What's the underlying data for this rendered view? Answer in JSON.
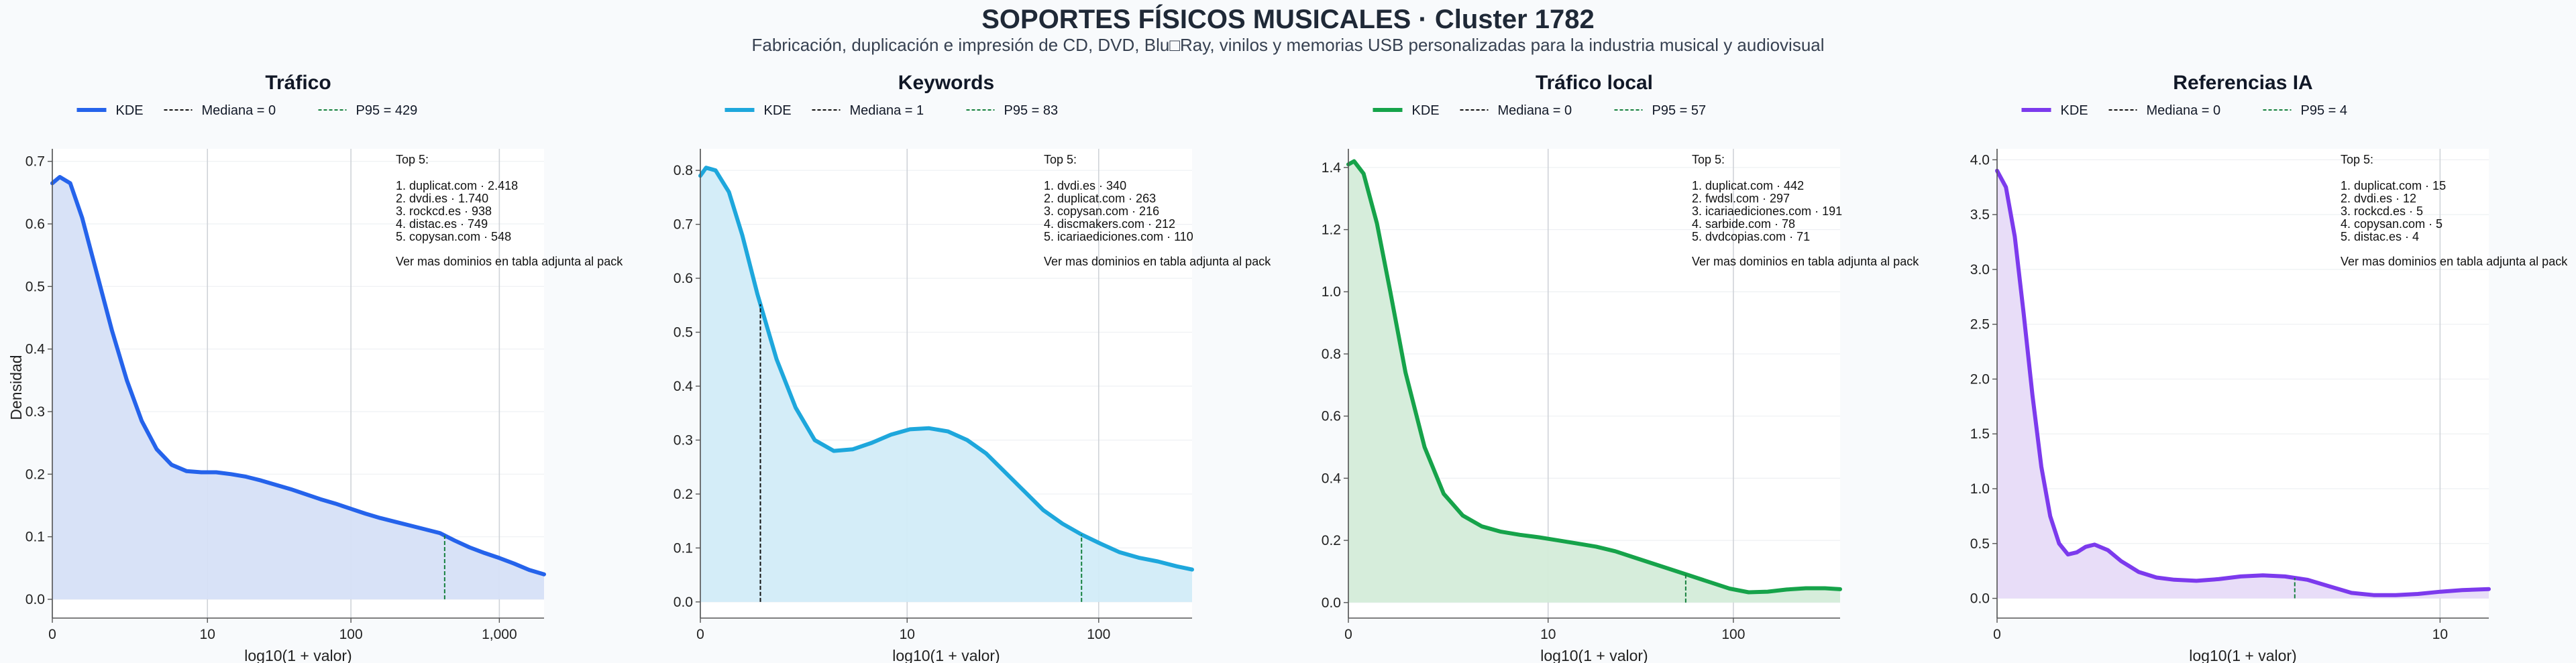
{
  "figure": {
    "title": "SOPORTES FÍSICOS MUSICALES · Cluster 1782",
    "subtitle": "Fabricación, duplicación e impresión de CD, DVD, Blu□Ray, vinilos y memorias USB personalizadas para la industria musical y audiovisual"
  },
  "chart_data": [
    {
      "type": "area",
      "title": "Tráfico",
      "color": "#2563eb",
      "fill": "#d6e0f7",
      "xlabel": "log10(1 + valor)",
      "ylabel": "Densidad",
      "xlim": [
        0,
        3.3
      ],
      "ylim": [
        -0.03,
        0.72
      ],
      "xticks": [
        {
          "v": 0,
          "label": "0"
        },
        {
          "v": 1.041,
          "label": "10"
        },
        {
          "v": 2.004,
          "label": "100"
        },
        {
          "v": 3.0,
          "label": "1,000"
        }
      ],
      "yticks": [
        0.0,
        0.1,
        0.2,
        0.3,
        0.4,
        0.5,
        0.6,
        0.7
      ],
      "legend": {
        "kde": "KDE",
        "median": "Mediana = 0",
        "p95": "P95 = 429"
      },
      "median_x": 0,
      "p95_x": 2.633,
      "kde": {
        "x": [
          0,
          0.05,
          0.12,
          0.2,
          0.3,
          0.4,
          0.5,
          0.6,
          0.7,
          0.8,
          0.9,
          1.0,
          1.1,
          1.2,
          1.3,
          1.4,
          1.5,
          1.6,
          1.7,
          1.8,
          1.9,
          2.0,
          2.1,
          2.2,
          2.3,
          2.4,
          2.5,
          2.6,
          2.7,
          2.8,
          2.9,
          3.0,
          3.1,
          3.2,
          3.3
        ],
        "y": [
          0.665,
          0.675,
          0.665,
          0.61,
          0.52,
          0.43,
          0.35,
          0.285,
          0.24,
          0.215,
          0.205,
          0.203,
          0.203,
          0.2,
          0.196,
          0.19,
          0.183,
          0.176,
          0.168,
          0.16,
          0.153,
          0.145,
          0.137,
          0.13,
          0.124,
          0.118,
          0.112,
          0.106,
          0.094,
          0.083,
          0.074,
          0.066,
          0.057,
          0.047,
          0.04
        ]
      },
      "top5": {
        "heading": "Top 5:",
        "items": [
          "1. duplicat.com · 2.418",
          "2. dvdi.es · 1.740",
          "3. rockcd.es · 938",
          "4. distac.es · 749",
          "5. copysan.com · 548"
        ],
        "note": "Ver mas dominios en tabla adjunta al pack"
      }
    },
    {
      "type": "area",
      "title": "Keywords",
      "color": "#1ea7dc",
      "fill": "#d2ecf8",
      "xlabel": "log10(1 + valor)",
      "ylabel": "",
      "xlim": [
        0,
        2.58
      ],
      "ylim": [
        -0.03,
        0.84
      ],
      "xticks": [
        {
          "v": 0,
          "label": "0"
        },
        {
          "v": 1.085,
          "label": "10"
        },
        {
          "v": 2.09,
          "label": "100"
        }
      ],
      "yticks": [
        0.0,
        0.1,
        0.2,
        0.3,
        0.4,
        0.5,
        0.6,
        0.7,
        0.8
      ],
      "legend": {
        "kde": "KDE",
        "median": "Mediana = 1",
        "p95": "P95 = 83"
      },
      "median_x": 0.315,
      "p95_x": 2.0,
      "kde": {
        "x": [
          0,
          0.03,
          0.08,
          0.15,
          0.22,
          0.3,
          0.4,
          0.5,
          0.6,
          0.7,
          0.8,
          0.9,
          1.0,
          1.1,
          1.2,
          1.3,
          1.4,
          1.5,
          1.6,
          1.7,
          1.8,
          1.9,
          2.0,
          2.1,
          2.2,
          2.3,
          2.4,
          2.5,
          2.58
        ],
        "y": [
          0.79,
          0.805,
          0.8,
          0.76,
          0.68,
          0.57,
          0.45,
          0.36,
          0.3,
          0.28,
          0.283,
          0.295,
          0.31,
          0.32,
          0.322,
          0.316,
          0.3,
          0.275,
          0.24,
          0.205,
          0.17,
          0.145,
          0.125,
          0.108,
          0.092,
          0.082,
          0.075,
          0.066,
          0.06
        ]
      },
      "top5": {
        "heading": "Top 5:",
        "items": [
          "1. dvdi.es · 340",
          "2. duplicat.com · 263",
          "3. copysan.com · 216",
          "4. discmakers.com · 212",
          "5. icariaediciones.com · 110"
        ],
        "note": "Ver mas dominios en tabla adjunta al pack"
      }
    },
    {
      "type": "area",
      "title": "Tráfico local",
      "color": "#16a34a",
      "fill": "#d4ecd9",
      "xlabel": "log10(1 + valor)",
      "ylabel": "",
      "xlim": [
        0,
        2.58
      ],
      "ylim": [
        -0.05,
        1.46
      ],
      "xticks": [
        {
          "v": 0,
          "label": "0"
        },
        {
          "v": 1.048,
          "label": "10"
        },
        {
          "v": 2.02,
          "label": "100"
        }
      ],
      "yticks": [
        0.0,
        0.2,
        0.4,
        0.6,
        0.8,
        1.0,
        1.2,
        1.4
      ],
      "legend": {
        "kde": "KDE",
        "median": "Mediana = 0",
        "p95": "P95 = 57"
      },
      "median_x": 0,
      "p95_x": 1.77,
      "kde": {
        "x": [
          0,
          0.03,
          0.08,
          0.15,
          0.22,
          0.3,
          0.4,
          0.5,
          0.6,
          0.7,
          0.8,
          0.9,
          1.0,
          1.1,
          1.2,
          1.3,
          1.4,
          1.5,
          1.6,
          1.7,
          1.8,
          1.9,
          2.0,
          2.1,
          2.2,
          2.3,
          2.4,
          2.5,
          2.58
        ],
        "y": [
          1.41,
          1.42,
          1.38,
          1.22,
          1.0,
          0.74,
          0.5,
          0.35,
          0.28,
          0.245,
          0.228,
          0.218,
          0.21,
          0.2,
          0.19,
          0.18,
          0.165,
          0.145,
          0.125,
          0.105,
          0.085,
          0.065,
          0.045,
          0.033,
          0.035,
          0.042,
          0.046,
          0.046,
          0.043
        ]
      },
      "top5": {
        "heading": "Top 5:",
        "items": [
          "1. duplicat.com · 442",
          "2. fwdsl.com · 297",
          "3. icariaediciones.com · 191",
          "4. sarbide.com · 78",
          "5. dvdcopias.com · 71"
        ],
        "note": "Ver mas dominios en tabla adjunta al pack"
      }
    },
    {
      "type": "area",
      "title": "Referencias IA",
      "color": "#7c3aed",
      "fill": "#e7dbf8",
      "xlabel": "log10(1 + valor)",
      "ylabel": "",
      "xlim": [
        0,
        1.11
      ],
      "ylim": [
        -0.18,
        4.1
      ],
      "xticks": [
        {
          "v": 0,
          "label": "0"
        },
        {
          "v": 1.0,
          "label": "10"
        }
      ],
      "yticks": [
        0.0,
        0.5,
        1.0,
        1.5,
        2.0,
        2.5,
        3.0,
        3.5,
        4.0
      ],
      "legend": {
        "kde": "KDE",
        "median": "Mediana = 0",
        "p95": "P95 = 4"
      },
      "median_x": 0,
      "p95_x": 0.672,
      "kde": {
        "x": [
          0,
          0.02,
          0.04,
          0.06,
          0.08,
          0.1,
          0.12,
          0.14,
          0.16,
          0.18,
          0.2,
          0.22,
          0.25,
          0.28,
          0.32,
          0.36,
          0.4,
          0.45,
          0.5,
          0.55,
          0.6,
          0.65,
          0.7,
          0.75,
          0.8,
          0.85,
          0.9,
          0.95,
          1.0,
          1.05,
          1.11
        ],
        "y": [
          3.9,
          3.75,
          3.3,
          2.6,
          1.85,
          1.2,
          0.75,
          0.5,
          0.4,
          0.42,
          0.47,
          0.49,
          0.44,
          0.34,
          0.24,
          0.19,
          0.17,
          0.16,
          0.175,
          0.2,
          0.21,
          0.2,
          0.17,
          0.11,
          0.05,
          0.03,
          0.03,
          0.04,
          0.06,
          0.075,
          0.085
        ]
      },
      "top5": {
        "heading": "Top 5:",
        "items": [
          "1. duplicat.com · 15",
          "2. dvdi.es · 12",
          "3. rockcd.es · 5",
          "4. copysan.com · 5",
          "5. distac.es · 4"
        ],
        "note": "Ver mas dominios en tabla adjunta al pack"
      }
    }
  ]
}
